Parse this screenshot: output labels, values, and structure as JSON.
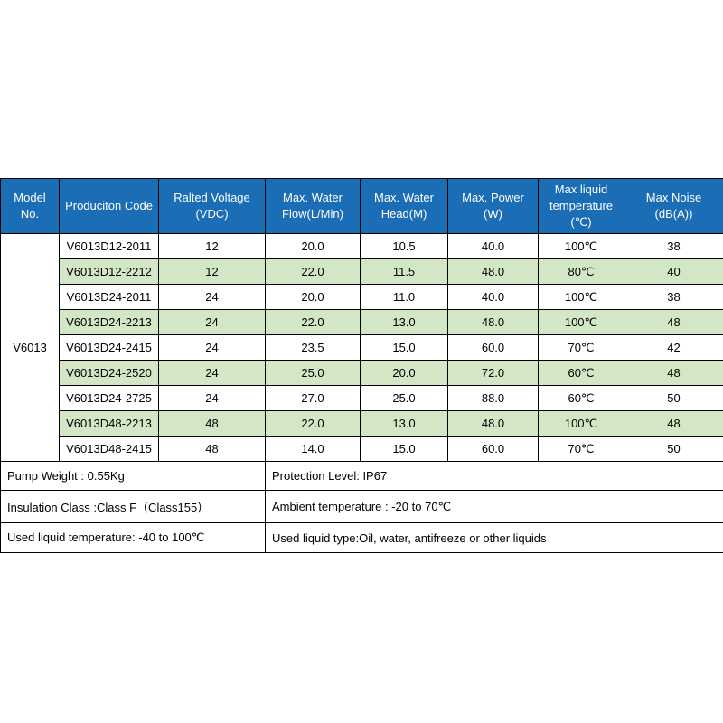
{
  "table": {
    "colors": {
      "header_bg": "#1b6db6",
      "highlight_bg": "#d3e7c7",
      "border": "#000000"
    },
    "headers": [
      {
        "lines": [
          "Model",
          "No."
        ]
      },
      {
        "lines": [
          "Produciton Code"
        ]
      },
      {
        "lines": [
          "Ralted Voltage",
          "(VDC)"
        ]
      },
      {
        "lines": [
          "Max. Water",
          "Flow(L/Min)"
        ]
      },
      {
        "lines": [
          "Max. Water",
          "Head(M)"
        ]
      },
      {
        "lines": [
          "Max. Power",
          "(W)"
        ]
      },
      {
        "lines": [
          "Max liquid",
          "temperature",
          "(℃)"
        ]
      },
      {
        "lines": [
          "Max Noise",
          "(dB(A))"
        ]
      }
    ],
    "model_no": "V6013",
    "rows": [
      {
        "code": "V6013D12-2011",
        "voltage": "12",
        "flow": "20.0",
        "head": "10.5",
        "power": "40.0",
        "temp": "100℃",
        "noise": "38",
        "highlight": false
      },
      {
        "code": "V6013D12-2212",
        "voltage": "12",
        "flow": "22.0",
        "head": "11.5",
        "power": "48.0",
        "temp": "80℃",
        "noise": "40",
        "highlight": true
      },
      {
        "code": "V6013D24-2011",
        "voltage": "24",
        "flow": "20.0",
        "head": "11.0",
        "power": "40.0",
        "temp": "100℃",
        "noise": "38",
        "highlight": false
      },
      {
        "code": "V6013D24-2213",
        "voltage": "24",
        "flow": "22.0",
        "head": "13.0",
        "power": "48.0",
        "temp": "100℃",
        "noise": "48",
        "highlight": true
      },
      {
        "code": "V6013D24-2415",
        "voltage": "24",
        "flow": "23.5",
        "head": "15.0",
        "power": "60.0",
        "temp": "70℃",
        "noise": "42",
        "highlight": false
      },
      {
        "code": "V6013D24-2520",
        "voltage": "24",
        "flow": "25.0",
        "head": "20.0",
        "power": "72.0",
        "temp": "60℃",
        "noise": "48",
        "highlight": true
      },
      {
        "code": "V6013D24-2725",
        "voltage": "24",
        "flow": "27.0",
        "head": "25.0",
        "power": "88.0",
        "temp": "60℃",
        "noise": "50",
        "highlight": false
      },
      {
        "code": "V6013D48-2213",
        "voltage": "48",
        "flow": "22.0",
        "head": "13.0",
        "power": "48.0",
        "temp": "100℃",
        "noise": "48",
        "highlight": true
      },
      {
        "code": "V6013D48-2415",
        "voltage": "48",
        "flow": "14.0",
        "head": "15.0",
        "power": "60.0",
        "temp": "70℃",
        "noise": "50",
        "highlight": false
      }
    ]
  },
  "footer": {
    "rows": [
      {
        "left": "Pump Weight : 0.55Kg",
        "right": "Protection Level: IP67"
      },
      {
        "left": "Insulation Class :Class F（Class155）",
        "right": "Ambient temperature : -20 to 70℃"
      },
      {
        "left": "Used liquid temperature: -40 to 100℃",
        "right": "Used liquid type:Oil, water, antifreeze or other liquids"
      }
    ]
  }
}
